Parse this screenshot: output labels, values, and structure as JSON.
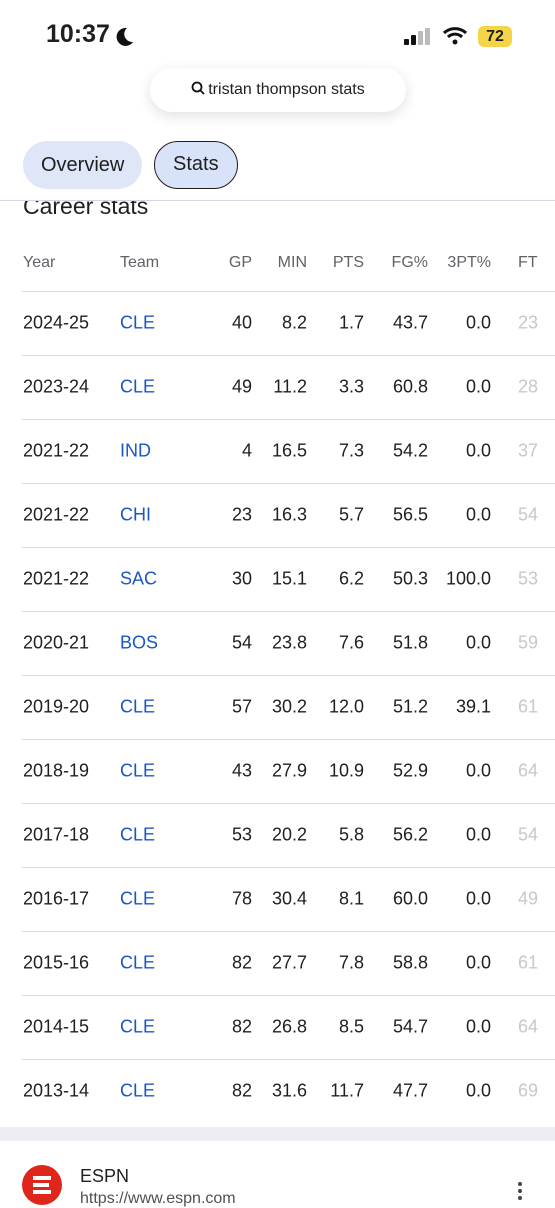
{
  "status_bar": {
    "time": "10:37",
    "battery": "72"
  },
  "search": {
    "query": "tristan thompson stats"
  },
  "tabs": [
    "Overview",
    "Stats"
  ],
  "section_title": "Career stats",
  "table": {
    "columns": [
      "Year",
      "Team",
      "GP",
      "MIN",
      "PTS",
      "FG%",
      "3PT%",
      "FT"
    ],
    "rows": [
      [
        "2024-25",
        "CLE",
        "40",
        "8.2",
        "1.7",
        "43.7",
        "0.0",
        "23"
      ],
      [
        "2023-24",
        "CLE",
        "49",
        "11.2",
        "3.3",
        "60.8",
        "0.0",
        "28"
      ],
      [
        "2021-22",
        "IND",
        "4",
        "16.5",
        "7.3",
        "54.2",
        "0.0",
        "37"
      ],
      [
        "2021-22",
        "CHI",
        "23",
        "16.3",
        "5.7",
        "56.5",
        "0.0",
        "54"
      ],
      [
        "2021-22",
        "SAC",
        "30",
        "15.1",
        "6.2",
        "50.3",
        "100.0",
        "53"
      ],
      [
        "2020-21",
        "BOS",
        "54",
        "23.8",
        "7.6",
        "51.8",
        "0.0",
        "59"
      ],
      [
        "2019-20",
        "CLE",
        "57",
        "30.2",
        "12.0",
        "51.2",
        "39.1",
        "61"
      ],
      [
        "2018-19",
        "CLE",
        "43",
        "27.9",
        "10.9",
        "52.9",
        "0.0",
        "64"
      ],
      [
        "2017-18",
        "CLE",
        "53",
        "20.2",
        "5.8",
        "56.2",
        "0.0",
        "54"
      ],
      [
        "2016-17",
        "CLE",
        "78",
        "30.4",
        "8.1",
        "60.0",
        "0.0",
        "49"
      ],
      [
        "2015-16",
        "CLE",
        "82",
        "27.7",
        "7.8",
        "58.8",
        "0.0",
        "61"
      ],
      [
        "2014-15",
        "CLE",
        "82",
        "26.8",
        "8.5",
        "54.7",
        "0.0",
        "64"
      ],
      [
        "2013-14",
        "CLE",
        "82",
        "31.6",
        "11.7",
        "47.7",
        "0.0",
        "69"
      ]
    ]
  },
  "result": {
    "source": "ESPN",
    "url": "https://www.espn.com"
  }
}
